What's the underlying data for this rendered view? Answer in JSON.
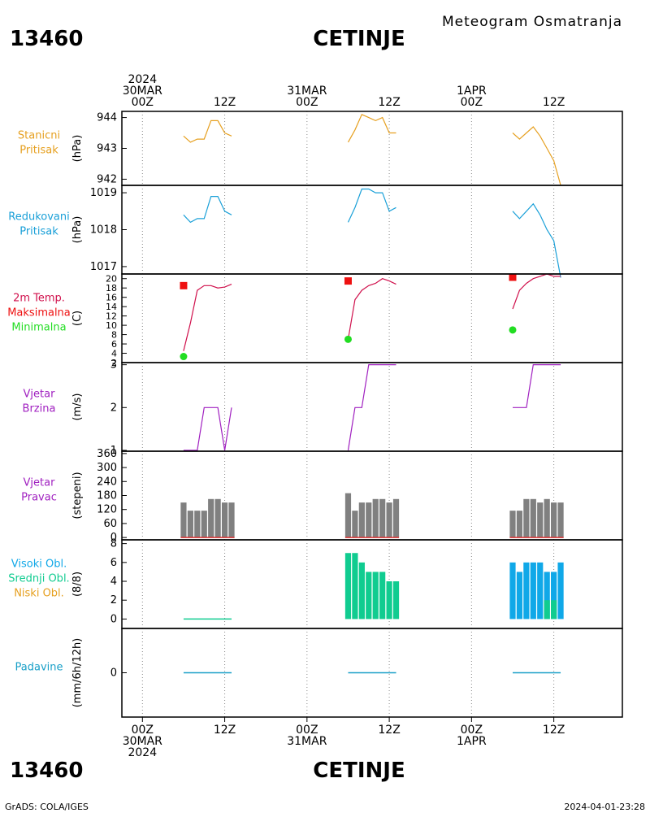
{
  "header": {
    "station_id": "13460",
    "station_name": "CETINJE",
    "product": "Meteogram Osmatranja"
  },
  "footer": {
    "station_id": "13460",
    "station_name": "CETINJE",
    "credit": "GrADS: COLA/IGES",
    "timestamp": "2024-04-01-23:28"
  },
  "time_axis": {
    "top_labels": [
      {
        "hour": 0,
        "lines": [
          "2024",
          "30MAR",
          "00Z"
        ]
      },
      {
        "hour": 12,
        "lines": [
          "12Z"
        ]
      },
      {
        "hour": 24,
        "lines": [
          "31MAR",
          "00Z"
        ]
      },
      {
        "hour": 36,
        "lines": [
          "12Z"
        ]
      },
      {
        "hour": 48,
        "lines": [
          "1APR",
          "00Z"
        ]
      },
      {
        "hour": 60,
        "lines": [
          "12Z"
        ]
      }
    ],
    "bottom_labels": [
      {
        "hour": 0,
        "lines": [
          "00Z",
          "30MAR",
          "2024"
        ]
      },
      {
        "hour": 12,
        "lines": [
          "12Z"
        ]
      },
      {
        "hour": 24,
        "lines": [
          "00Z",
          "31MAR"
        ]
      },
      {
        "hour": 36,
        "lines": [
          "12Z"
        ]
      },
      {
        "hour": 48,
        "lines": [
          "00Z",
          "1APR"
        ]
      },
      {
        "hour": 60,
        "lines": [
          "12Z"
        ]
      }
    ]
  },
  "colors": {
    "pressure_station": "#e6a020",
    "pressure_reduced": "#1aa0d8",
    "temperature": "#d0104c",
    "temp_max": "#ee1111",
    "temp_min": "#22dd22",
    "wind": "#a020c0",
    "wind_dir_bar": "#808080",
    "wind_dir_base": "#dd3333",
    "cloud_high": "#10a8e8",
    "cloud_mid": "#10cc90",
    "cloud_low": "#e6a020",
    "precip": "#1aa0c8"
  },
  "chart_data": {
    "type": "line",
    "x_unit": "hours since 2024-03-30 00Z",
    "xlim": [
      -3,
      70
    ],
    "panels": [
      {
        "id": "station_pressure",
        "labels": [
          "Stanicni",
          "Pritisak"
        ],
        "label_colors": [
          "pressure_station",
          "pressure_station"
        ],
        "ylabel": "(hPa)",
        "ylim": [
          941.8,
          944.2
        ],
        "yticks": [
          942,
          943,
          944
        ],
        "segments": [
          {
            "x": [
              6,
              7,
              8,
              9,
              10,
              11,
              12,
              13
            ],
            "y": [
              943.4,
              943.2,
              943.3,
              943.3,
              943.9,
              943.9,
              943.5,
              943.4
            ]
          },
          {
            "x": [
              30,
              31,
              32,
              33,
              34,
              35,
              36,
              37
            ],
            "y": [
              943.2,
              943.6,
              944.1,
              944.0,
              943.9,
              944.0,
              943.5,
              943.5
            ]
          },
          {
            "x": [
              54,
              55,
              56,
              57,
              58,
              59,
              60,
              61
            ],
            "y": [
              943.5,
              943.3,
              943.5,
              943.7,
              943.4,
              943.0,
              942.6,
              941.8
            ]
          }
        ]
      },
      {
        "id": "reduced_pressure",
        "labels": [
          "Redukovani",
          "Pritisak"
        ],
        "label_colors": [
          "pressure_reduced",
          "pressure_reduced"
        ],
        "ylabel": "(hPa)",
        "ylim": [
          1016.8,
          1019.2
        ],
        "yticks": [
          1017,
          1018,
          1019
        ],
        "segments": [
          {
            "x": [
              6,
              7,
              8,
              9,
              10,
              11,
              12,
              13
            ],
            "y": [
              1018.4,
              1018.2,
              1018.3,
              1018.3,
              1018.9,
              1018.9,
              1018.5,
              1018.4
            ]
          },
          {
            "x": [
              30,
              31,
              32,
              33,
              34,
              35,
              36,
              37
            ],
            "y": [
              1018.2,
              1018.6,
              1019.1,
              1019.1,
              1019.0,
              1019.0,
              1018.5,
              1018.6
            ]
          },
          {
            "x": [
              54,
              55,
              56,
              57,
              58,
              59,
              60,
              61
            ],
            "y": [
              1018.5,
              1018.3,
              1018.5,
              1018.7,
              1018.4,
              1018.0,
              1017.7,
              1016.7
            ]
          }
        ]
      },
      {
        "id": "temperature",
        "labels": [
          "2m Temp.",
          "Maksimalna",
          "Minimalna"
        ],
        "label_colors": [
          "temperature",
          "temp_max",
          "temp_min"
        ],
        "ylabel": "(C)",
        "ylim": [
          2,
          21
        ],
        "yticks": [
          2,
          4,
          6,
          8,
          10,
          12,
          14,
          16,
          18,
          20
        ],
        "segments": [
          {
            "x": [
              6,
              7,
              8,
              9,
              10,
              11,
              12,
              13
            ],
            "y": [
              4.5,
              10.5,
              17.5,
              18.5,
              18.5,
              18.0,
              18.2,
              18.8
            ]
          },
          {
            "x": [
              30,
              31,
              32,
              33,
              34,
              35,
              36,
              37
            ],
            "y": [
              7.0,
              15.5,
              17.5,
              18.5,
              19.0,
              20.0,
              19.5,
              18.8
            ]
          },
          {
            "x": [
              54,
              55,
              56,
              57,
              58,
              59,
              60,
              61
            ],
            "y": [
              13.5,
              17.5,
              19.0,
              20.0,
              20.5,
              21.0,
              20.5,
              20.5
            ]
          }
        ],
        "max_markers": [
          {
            "x": 6,
            "y": 18.5
          },
          {
            "x": 30,
            "y": 19.5
          },
          {
            "x": 54,
            "y": 20.3
          }
        ],
        "min_markers": [
          {
            "x": 6,
            "y": 3.3
          },
          {
            "x": 30,
            "y": 7.0
          },
          {
            "x": 54,
            "y": 9.0
          }
        ]
      },
      {
        "id": "wind_speed",
        "labels": [
          "Vjetar",
          "Brzina"
        ],
        "label_colors": [
          "wind",
          "wind"
        ],
        "ylabel": "(m/s)",
        "ylim": [
          0.98,
          3.05
        ],
        "yticks": [
          1,
          2,
          3
        ],
        "segments": [
          {
            "x": [
              6,
              7,
              8,
              9,
              10,
              11,
              12,
              13
            ],
            "y": [
              1,
              1,
              1,
              2,
              2,
              2,
              1,
              2
            ]
          },
          {
            "x": [
              30,
              31,
              32,
              33,
              34,
              35,
              36,
              37
            ],
            "y": [
              1,
              2,
              2,
              3,
              3,
              3,
              3,
              3
            ]
          },
          {
            "x": [
              54,
              55,
              56,
              57,
              58,
              59,
              60,
              61
            ],
            "y": [
              2,
              2,
              2,
              3,
              3,
              3,
              3,
              3
            ]
          }
        ]
      },
      {
        "id": "wind_direction",
        "type": "bar",
        "labels": [
          "Vjetar",
          "Pravac"
        ],
        "label_colors": [
          "wind",
          "wind"
        ],
        "ylabel": "(stepeni)",
        "ylim": [
          -10,
          370
        ],
        "yticks": [
          0,
          60,
          120,
          180,
          240,
          300,
          360
        ],
        "bars": [
          {
            "x": [
              6,
              7,
              8,
              9,
              10,
              11,
              12,
              13
            ],
            "y": [
              150,
              115,
              115,
              115,
              165,
              165,
              150,
              150
            ]
          },
          {
            "x": [
              30,
              31,
              32,
              33,
              34,
              35,
              36,
              37
            ],
            "y": [
              190,
              115,
              150,
              150,
              165,
              165,
              150,
              165
            ]
          },
          {
            "x": [
              54,
              55,
              56,
              57,
              58,
              59,
              60,
              61
            ],
            "y": [
              115,
              115,
              165,
              165,
              150,
              165,
              150,
              150
            ]
          }
        ]
      },
      {
        "id": "clouds",
        "type": "bar",
        "labels": [
          "Visoki Obl.",
          "Srednji Obl.",
          "Niski Obl."
        ],
        "label_colors": [
          "cloud_high",
          "cloud_mid",
          "cloud_low"
        ],
        "ylabel": "(8/8)",
        "ylim": [
          -1,
          8.4
        ],
        "yticks": [
          0,
          2,
          4,
          6,
          8
        ],
        "bars": [
          {
            "layer": "mid",
            "x": [
              30,
              31,
              32,
              33,
              34,
              35,
              36,
              37
            ],
            "y": [
              7,
              7,
              6,
              5,
              5,
              5,
              4,
              4
            ]
          },
          {
            "layer": "high",
            "x": [
              54,
              55,
              56,
              57,
              58,
              59,
              60,
              61
            ],
            "y": [
              6,
              5,
              6,
              6,
              6,
              5,
              5,
              6
            ]
          },
          {
            "layer": "mid",
            "x": [
              59,
              60
            ],
            "y": [
              2,
              2
            ]
          }
        ],
        "flat_segments": [
          {
            "x": [
              6,
              13
            ],
            "y": 0
          }
        ]
      },
      {
        "id": "precipitation",
        "labels": [
          "Padavine"
        ],
        "label_colors": [
          "precip"
        ],
        "ylabel": "(mm/6h/12h)",
        "ylim": [
          -5,
          5
        ],
        "yticks": [
          0
        ],
        "flat_segments": [
          {
            "x": [
              6,
              13
            ],
            "y": 0
          },
          {
            "x": [
              30,
              37
            ],
            "y": 0
          },
          {
            "x": [
              54,
              61
            ],
            "y": 0
          }
        ]
      }
    ]
  }
}
